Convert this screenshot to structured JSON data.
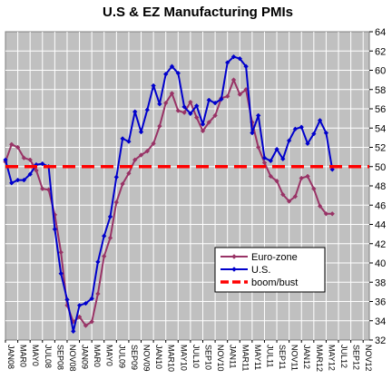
{
  "chart_data": {
    "type": "line",
    "title": "U.S & EZ Manufacturing PMIs",
    "xlabel": "",
    "ylabel": "",
    "ylim": [
      32,
      64
    ],
    "yticks": [
      32,
      34,
      36,
      38,
      40,
      42,
      44,
      46,
      48,
      50,
      52,
      54,
      56,
      58,
      60,
      62,
      64
    ],
    "x_tick_labels": [
      "JAN08",
      "MAR08",
      "MAY08",
      "JUL08",
      "SEP08",
      "NOV08",
      "JAN09",
      "MAR09",
      "MAY09",
      "JUL09",
      "SEP09",
      "NOV09",
      "JAN10",
      "MAR10",
      "MAY10",
      "JUL10",
      "SEP10",
      "NOV10",
      "JAN11",
      "MAR11",
      "MAY11",
      "JUL11",
      "SEP11",
      "NOV11",
      "JAN12",
      "MAR12",
      "MAY12",
      "JUL12",
      "SEP12",
      "NOV12"
    ],
    "x_tick_display": [
      "JAN08",
      "MAR0",
      "MAY0",
      "JUL08",
      "SEP08",
      "NOV08",
      "JAN09",
      "MAR0",
      "MAY0",
      "JUL09",
      "SEP09",
      "NOV09",
      "JAN10",
      "MAR10",
      "MAY10",
      "JUL10",
      "SEP10",
      "NOV10",
      "JAN11",
      "MAR11",
      "MAY11",
      "JUL11",
      "SEP11",
      "NOV11",
      "JAN12",
      "MAR12",
      "MAY12",
      "JUL12",
      "SEP12",
      "NOV12"
    ],
    "grid": true,
    "plot_background": "#c0c0c0",
    "legend_position": "lower-right",
    "series": [
      {
        "name": "Euro-zone",
        "color": "#993366",
        "marker": "diamond",
        "values": [
          50.5,
          52.3,
          52.0,
          50.9,
          50.7,
          49.6,
          47.7,
          47.6,
          45.0,
          41.1,
          35.6,
          33.9,
          34.4,
          33.5,
          33.9,
          36.8,
          40.7,
          42.6,
          46.3,
          48.2,
          49.3,
          50.7,
          51.2,
          51.6,
          52.4,
          54.2,
          56.6,
          57.6,
          55.8,
          55.6,
          56.7,
          55.1,
          53.7,
          54.6,
          55.3,
          57.1,
          57.3,
          59.0,
          57.5,
          58.0,
          54.6,
          52.0,
          50.4,
          49.0,
          48.5,
          47.1,
          46.4,
          46.9,
          48.8,
          49.0,
          47.7,
          45.9,
          45.1,
          45.1
        ],
        "start_label": "JAN08"
      },
      {
        "name": "U.S.",
        "color": "#0000cc",
        "marker": "diamond",
        "values": [
          50.7,
          48.3,
          48.6,
          48.6,
          49.2,
          50.2,
          50.3,
          50.0,
          43.5,
          38.9,
          36.2,
          32.9,
          35.6,
          35.8,
          36.3,
          40.1,
          42.8,
          44.8,
          48.9,
          52.9,
          52.6,
          55.7,
          53.6,
          55.9,
          58.4,
          56.5,
          59.6,
          60.4,
          59.7,
          56.2,
          55.5,
          56.3,
          54.4,
          56.9,
          56.6,
          57.0,
          60.8,
          61.4,
          61.2,
          60.4,
          53.5,
          55.3,
          50.9,
          50.6,
          51.8,
          50.8,
          52.7,
          53.9,
          54.1,
          52.4,
          53.4,
          54.8,
          53.5,
          49.7
        ],
        "start_label": "JAN08"
      },
      {
        "name": "boom/bust",
        "color": "#ff0000",
        "style": "dashed",
        "values": [
          50,
          50
        ]
      }
    ]
  }
}
